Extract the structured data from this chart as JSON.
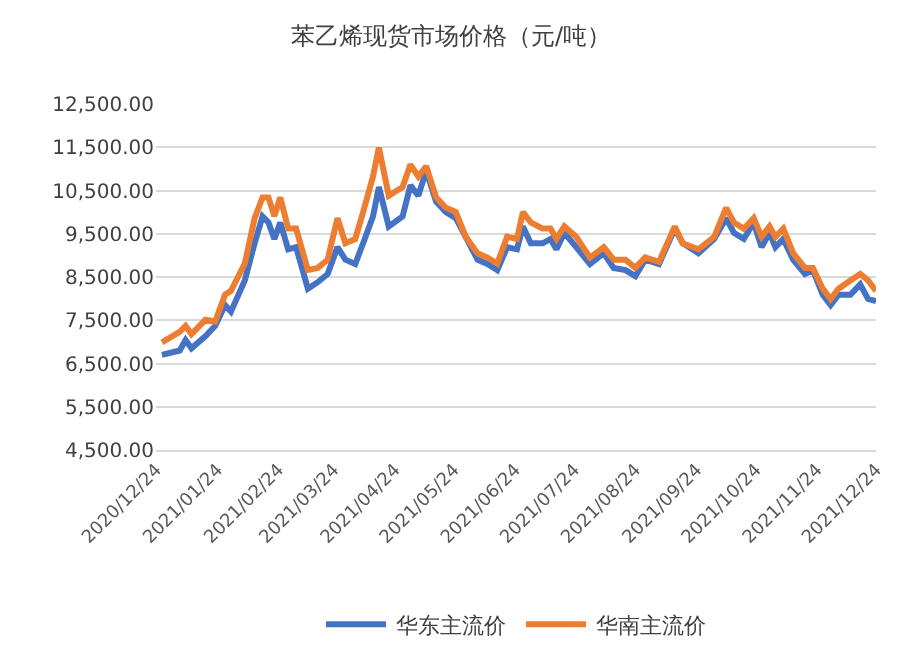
{
  "chart_data": {
    "type": "line",
    "title": "苯乙烯现货市场价格（元/吨）",
    "x": [
      "2020-12-27",
      "2021-01-05",
      "2021-01-08",
      "2021-01-11",
      "2021-01-18",
      "2021-01-23",
      "2021-01-28",
      "2021-01-31",
      "2021-02-07",
      "2021-02-12",
      "2021-02-16",
      "2021-02-19",
      "2021-02-22",
      "2021-02-25",
      "2021-03-01",
      "2021-03-05",
      "2021-03-11",
      "2021-03-16",
      "2021-03-21",
      "2021-03-26",
      "2021-03-30",
      "2021-04-04",
      "2021-04-08",
      "2021-04-13",
      "2021-04-16",
      "2021-04-21",
      "2021-04-28",
      "2021-05-02",
      "2021-05-06",
      "2021-05-10",
      "2021-05-15",
      "2021-05-20",
      "2021-05-25",
      "2021-05-30",
      "2021-06-05",
      "2021-06-10",
      "2021-06-15",
      "2021-06-20",
      "2021-06-25",
      "2021-06-28",
      "2021-07-02",
      "2021-07-08",
      "2021-07-12",
      "2021-07-15",
      "2021-07-19",
      "2021-07-25",
      "2021-08-01",
      "2021-08-08",
      "2021-08-13",
      "2021-08-19",
      "2021-08-24",
      "2021-08-29",
      "2021-09-05",
      "2021-09-13",
      "2021-09-17",
      "2021-09-25",
      "2021-10-03",
      "2021-10-09",
      "2021-10-13",
      "2021-10-18",
      "2021-10-23",
      "2021-10-27",
      "2021-10-31",
      "2021-11-03",
      "2021-11-07",
      "2021-11-12",
      "2021-11-18",
      "2021-11-22",
      "2021-11-27",
      "2021-12-01",
      "2021-12-05",
      "2021-12-11",
      "2021-12-16",
      "2021-12-20",
      "2021-12-24"
    ],
    "series": [
      {
        "name": "华东主流价",
        "color": "#4472c4",
        "values": [
          6700,
          6800,
          7040,
          6850,
          7130,
          7370,
          7850,
          7700,
          8420,
          9280,
          9900,
          9760,
          9380,
          9760,
          9140,
          9190,
          8230,
          8380,
          8570,
          9190,
          8900,
          8800,
          9280,
          9900,
          10580,
          9670,
          9900,
          10620,
          10380,
          10960,
          10240,
          10000,
          9860,
          9430,
          8900,
          8800,
          8660,
          9190,
          9140,
          9670,
          9280,
          9280,
          9380,
          9140,
          9520,
          9190,
          8800,
          9050,
          8710,
          8660,
          8520,
          8900,
          8800,
          9620,
          9280,
          9050,
          9380,
          9860,
          9520,
          9380,
          9760,
          9190,
          9520,
          9190,
          9380,
          8900,
          8570,
          8660,
          8090,
          7850,
          8090,
          8090,
          8330,
          7990,
          7940
        ]
      },
      {
        "name": "华南主流价",
        "color": "#ed7d31",
        "values": [
          6990,
          7230,
          7370,
          7180,
          7510,
          7470,
          8090,
          8180,
          8810,
          9860,
          10340,
          10340,
          9910,
          10340,
          9620,
          9620,
          8660,
          8710,
          8900,
          9860,
          9280,
          9380,
          10000,
          10820,
          11490,
          10380,
          10580,
          11100,
          10820,
          11060,
          10340,
          10100,
          10000,
          9430,
          9050,
          8950,
          8810,
          9430,
          9380,
          10000,
          9760,
          9620,
          9620,
          9380,
          9670,
          9430,
          8950,
          9190,
          8900,
          8900,
          8710,
          8950,
          8850,
          9670,
          9280,
          9140,
          9430,
          10100,
          9760,
          9620,
          9860,
          9430,
          9670,
          9430,
          9620,
          9050,
          8710,
          8710,
          8230,
          7990,
          8230,
          8420,
          8570,
          8420,
          8180
        ]
      }
    ],
    "xlim": [
      "2020-12-24",
      "2021-12-24"
    ],
    "xticks": [
      {
        "value": "2020-12-24",
        "label": "2020/12/24"
      },
      {
        "value": "2021-01-24",
        "label": "2021/01/24"
      },
      {
        "value": "2021-02-24",
        "label": "2021/02/24"
      },
      {
        "value": "2021-03-24",
        "label": "2021/03/24"
      },
      {
        "value": "2021-04-24",
        "label": "2021/04/24"
      },
      {
        "value": "2021-05-24",
        "label": "2021/05/24"
      },
      {
        "value": "2021-06-24",
        "label": "2021/06/24"
      },
      {
        "value": "2021-07-24",
        "label": "2021/07/24"
      },
      {
        "value": "2021-08-24",
        "label": "2021/08/24"
      },
      {
        "value": "2021-09-24",
        "label": "2021/09/24"
      },
      {
        "value": "2021-10-24",
        "label": "2021/10/24"
      },
      {
        "value": "2021-11-24",
        "label": "2021/11/24"
      },
      {
        "value": "2021-12-24",
        "label": "2021/12/24"
      }
    ],
    "ylim": [
      4500,
      12500
    ],
    "yticks": [
      {
        "value": 4500,
        "label": "4,500.00"
      },
      {
        "value": 5500,
        "label": "5,500.00"
      },
      {
        "value": 6500,
        "label": "6,500.00"
      },
      {
        "value": 7500,
        "label": "7,500.00"
      },
      {
        "value": 8500,
        "label": "8,500.00"
      },
      {
        "value": 9500,
        "label": "9,500.00"
      },
      {
        "value": 10500,
        "label": "10,500.00"
      },
      {
        "value": 11500,
        "label": "11,500.00"
      },
      {
        "value": 12500,
        "label": "12,500.00"
      }
    ],
    "grid": "y",
    "legend": "bottom",
    "marker": "none",
    "line_style": "solid"
  }
}
